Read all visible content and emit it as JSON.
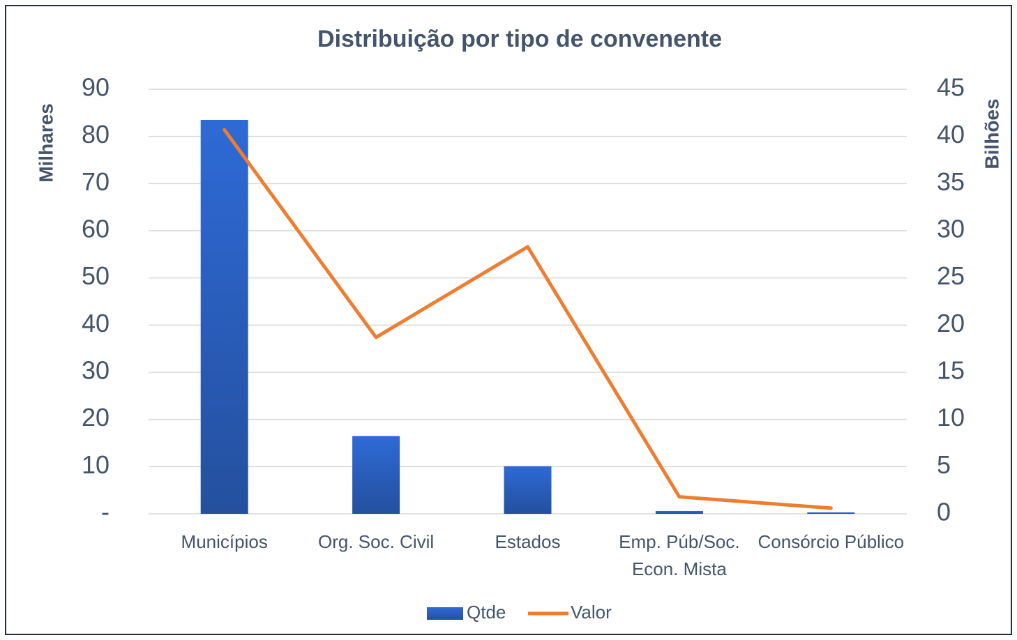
{
  "chart_data": {
    "type": "bar",
    "title": "Distribuição por tipo de convenente",
    "categories": [
      "Municípios",
      "Org. Soc. Civil",
      "Estados",
      "Emp. Púb/Soc. Econ. Mista",
      "Consórcio Público"
    ],
    "series": [
      {
        "name": "Qtde",
        "type": "bar",
        "color": "#2e6ad0",
        "values": [
          83.5,
          16.5,
          10.1,
          0.6,
          0.3
        ]
      },
      {
        "name": "Valor",
        "type": "line",
        "axis": "y2",
        "color": "#ed7d31",
        "values": [
          40.7,
          18.7,
          28.3,
          1.8,
          0.6
        ]
      }
    ],
    "ylabel": "Milhares",
    "y2label": "Bilhões",
    "ylim": [
      0,
      90
    ],
    "yticks": [
      {
        "value": 0,
        "label": "-"
      },
      10,
      20,
      30,
      40,
      50,
      60,
      70,
      80,
      90
    ],
    "y2lim": [
      0,
      45
    ],
    "y2ticks": [
      0,
      5,
      10,
      15,
      20,
      25,
      30,
      35,
      40,
      45
    ],
    "grid": true,
    "legend": "bottom"
  }
}
